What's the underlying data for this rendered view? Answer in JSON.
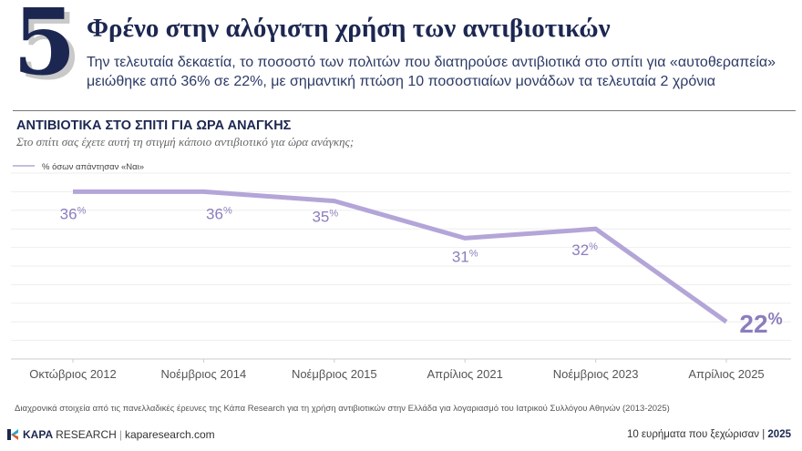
{
  "header": {
    "number": "5",
    "title": "Φρένο στην αλόγιστη χρήση των αντιβιοτικών",
    "subtitle_line1": "Την τελευταία δεκαετία, το ποσοστό των πολιτών που διατηρούσε αντιβιοτικά στο σπίτι για «αυτοθεραπεία»",
    "subtitle_line2": "μειώθηκε από 36% σε 22%, με σημαντική πτώση 10 ποσοστιαίων μονάδων τα τελευταία 2 χρόνια"
  },
  "chart_data": {
    "type": "line",
    "title": "ΑΝΤΙΒΙΟΤΙΚΑ ΣΤΟ ΣΠΙΤΙ ΓΙΑ ΩΡΑ ΑΝΑΓΚΗΣ",
    "subtitle": "Στο σπίτι σας έχετε αυτή τη στιγμή κάποιο αντιβιοτικό για ώρα ανάγκης;",
    "categories": [
      "Οκτώβριος 2012",
      "Νοέμβριος 2014",
      "Νοέμβριος 2015",
      "Απρίλιος 2021",
      "Νοέμβριος 2023",
      "Απρίλιος 2025"
    ],
    "series": [
      {
        "name": "% όσων απάντησαν «Ναι»",
        "values": [
          36,
          36,
          35,
          31,
          32,
          22
        ],
        "color": "#b4a5d8"
      }
    ],
    "data_labels": [
      "36",
      "36",
      "35",
      "31",
      "32",
      "22"
    ],
    "label_unit": "%",
    "ylim": [
      18,
      38
    ],
    "grid": true,
    "legend": "top-left",
    "label_color": "#8c7dbd"
  },
  "footer": {
    "note": "Διαχρονικά στοιχεία από τις πανελλαδικές έρευνες της Κάπα Research για τη χρήση αντιβιοτικών στην Ελλάδα για λογαριασμό του Ιατρικού Συλλόγου Αθηνών (2013-2025)",
    "brand_bold": "KAPA",
    "brand_rest": "RESEARCH",
    "website": "kaparesearch.com",
    "series_label": "10 ευρήματα που ξεχώρισαν",
    "year": "2025"
  }
}
